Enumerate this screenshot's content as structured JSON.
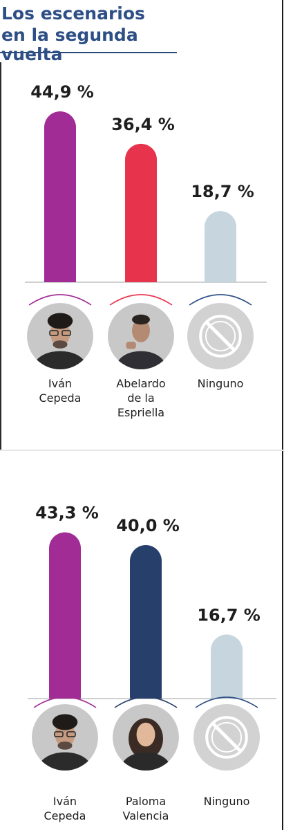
{
  "header": {
    "title_line1": "Los escenarios",
    "title_line2": "en la segunda vuelta",
    "color": "#2d4f86"
  },
  "chart_data": [
    {
      "type": "bar",
      "categories": [
        "Iván Cepeda",
        "Abelardo de la Espriella",
        "Ninguno"
      ],
      "values": [
        44.9,
        36.4,
        18.7
      ],
      "value_labels": [
        "44,9 %",
        "36,4 %",
        "18,7 %"
      ],
      "name_lines": [
        [
          "Iván",
          "Cepeda"
        ],
        [
          "Abelardo",
          "de la",
          "Espriella"
        ],
        [
          "Ninguno"
        ]
      ],
      "colors": [
        "#a12c95",
        "#e8334d",
        "#c6d5de"
      ],
      "arc_colors": [
        "#a12c95",
        "#e8334d",
        "#2d4f86"
      ],
      "photo_icons": [
        "person-photo-icon",
        "person-photo-icon",
        "no-symbol-icon"
      ],
      "ylim": [
        0,
        50
      ],
      "grid": false,
      "title": "Los escenarios en la segunda vuelta"
    },
    {
      "type": "bar",
      "categories": [
        "Iván Cepeda",
        "Paloma Valencia",
        "Ninguno"
      ],
      "values": [
        43.3,
        40.0,
        16.7
      ],
      "value_labels": [
        "43,3 %",
        "40,0 %",
        "16,7 %"
      ],
      "name_lines": [
        [
          "Iván",
          "Cepeda"
        ],
        [
          "Paloma",
          "Valencia"
        ],
        [
          "Ninguno"
        ]
      ],
      "colors": [
        "#a12c95",
        "#273f6b",
        "#c6d5de"
      ],
      "arc_colors": [
        "#a12c95",
        "#273f6b",
        "#2d4f86"
      ],
      "photo_icons": [
        "person-photo-icon",
        "person-photo-icon",
        "no-symbol-icon"
      ],
      "ylim": [
        0,
        50
      ],
      "grid": false
    }
  ]
}
